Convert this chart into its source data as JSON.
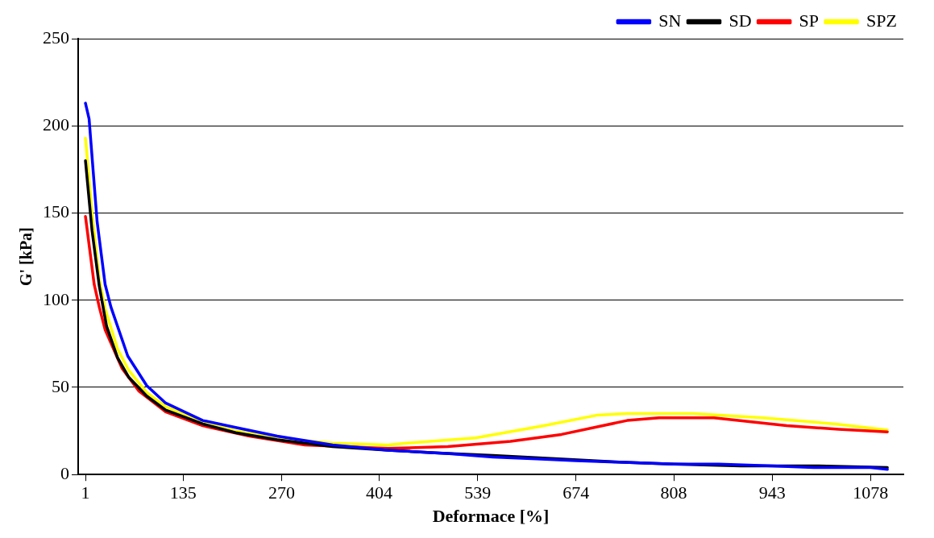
{
  "chart_data": {
    "type": "line",
    "xlabel": "Deformace [%]",
    "ylabel": "G' [kPa]",
    "xlim": [
      -9,
      1123
    ],
    "xticks": [
      1,
      135,
      270,
      404,
      539,
      674,
      808,
      943,
      1078
    ],
    "ylim": [
      0,
      250
    ],
    "yticks": [
      0,
      50,
      100,
      150,
      200,
      250
    ],
    "grid": "y",
    "legend": "top right",
    "marker": "none",
    "line_style": "solid",
    "series": [
      {
        "name": "SN",
        "color": "#0000ff",
        "x": [
          1,
          6,
          17,
          28,
          36,
          59,
          85,
          111,
          162,
          207,
          264,
          340,
          416,
          500,
          560,
          620,
          674,
          740,
          808,
          870,
          943,
          1000,
          1078,
          1101
        ],
        "values": [
          213,
          204,
          145,
          109,
          96,
          68,
          51,
          41,
          31,
          27,
          22,
          17,
          14,
          12,
          10,
          9,
          8,
          7,
          6,
          6,
          5,
          4,
          4,
          3
        ]
      },
      {
        "name": "SD",
        "color": "#000000",
        "x": [
          1,
          10,
          20,
          30,
          45,
          60,
          85,
          111,
          162,
          207,
          264,
          340,
          416,
          480,
          560,
          650,
          740,
          808,
          900,
          1000,
          1101
        ],
        "values": [
          180,
          140,
          108,
          85,
          67,
          56,
          45,
          37,
          29,
          24,
          20,
          16,
          14,
          12.5,
          11,
          9,
          7,
          6,
          5,
          5,
          4
        ]
      },
      {
        "name": "SP",
        "color": "#ff0000",
        "x": [
          1,
          13,
          20,
          28,
          51,
          74,
          111,
          162,
          226,
          302,
          416,
          498,
          584,
          654,
          744,
          788,
          863,
          963,
          1034,
          1101
        ],
        "values": [
          148,
          109,
          96,
          83,
          61,
          48,
          36,
          28,
          22,
          17,
          15,
          16,
          19,
          23,
          31,
          32.5,
          32.5,
          28,
          26,
          24.5
        ]
      },
      {
        "name": "SPZ",
        "color": "#ffff00",
        "x": [
          1,
          10,
          20,
          28,
          45,
          60,
          85,
          111,
          162,
          207,
          264,
          340,
          416,
          441,
          536,
          630,
          702,
          744,
          835,
          930,
          1030,
          1101
        ],
        "values": [
          193,
          150,
          112,
          95,
          72,
          60,
          47,
          39,
          30,
          25,
          21,
          18,
          17,
          18,
          21,
          28,
          34,
          35,
          35,
          32.5,
          29,
          25.5
        ]
      }
    ]
  }
}
